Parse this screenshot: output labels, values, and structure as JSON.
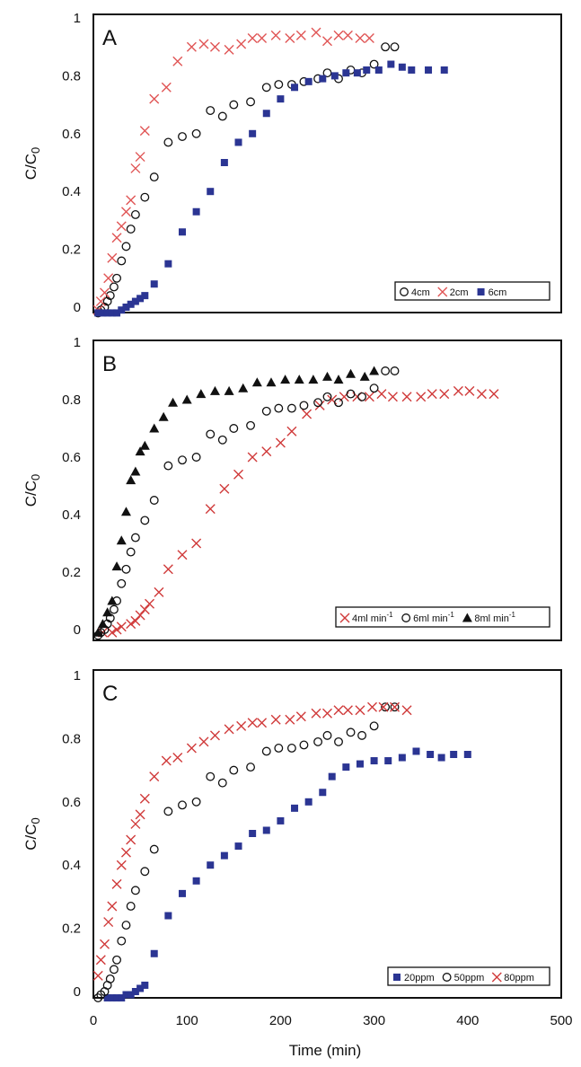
{
  "figure": {
    "xlabel": "Time (min)"
  },
  "chart_data": [
    {
      "type": "scatter",
      "panel_label": "A",
      "ylabel": "C/C0",
      "ylabel_main": "C/C",
      "ylabel_sub": "0",
      "xlim": [
        0,
        500
      ],
      "ylim": [
        0,
        1
      ],
      "xticks": [
        "0",
        "100",
        "200",
        "300",
        "400",
        "500"
      ],
      "yticks": [
        "0",
        "0.2",
        "0.4",
        "0.6",
        "0.8",
        "1"
      ],
      "show_xticks": false,
      "legend_position": "bottom-right",
      "series": [
        {
          "name": "4cm",
          "label": "4cm",
          "sup": "",
          "marker": "circle",
          "color": "#111111",
          "x": [
            5,
            8,
            12,
            15,
            18,
            22,
            25,
            30,
            35,
            40,
            45,
            55,
            65,
            80,
            95,
            110,
            125,
            138,
            150,
            168,
            185,
            198,
            212,
            225,
            240,
            250,
            262,
            275,
            287,
            300,
            312,
            322
          ],
          "y": [
            -0.02,
            -0.01,
            0.0,
            0.02,
            0.04,
            0.07,
            0.1,
            0.16,
            0.21,
            0.27,
            0.32,
            0.38,
            0.45,
            0.57,
            0.59,
            0.6,
            0.68,
            0.66,
            0.7,
            0.71,
            0.76,
            0.77,
            0.77,
            0.78,
            0.79,
            0.81,
            0.79,
            0.82,
            0.81,
            0.84,
            0.9,
            0.9
          ]
        },
        {
          "name": "2cm",
          "label": "2cm",
          "sup": "",
          "marker": "x",
          "color": "#e05555",
          "x": [
            5,
            8,
            12,
            16,
            20,
            25,
            30,
            35,
            40,
            45,
            50,
            55,
            65,
            78,
            90,
            105,
            118,
            130,
            145,
            158,
            170,
            180,
            195,
            210,
            222,
            238,
            250,
            262,
            272,
            285,
            295
          ],
          "y": [
            -0.01,
            0.02,
            0.05,
            0.1,
            0.17,
            0.24,
            0.28,
            0.33,
            0.37,
            0.48,
            0.52,
            0.61,
            0.72,
            0.76,
            0.85,
            0.9,
            0.91,
            0.9,
            0.89,
            0.91,
            0.93,
            0.93,
            0.94,
            0.93,
            0.94,
            0.95,
            0.92,
            0.94,
            0.94,
            0.93,
            0.93
          ]
        },
        {
          "name": "6cm",
          "label": "6cm",
          "sup": "",
          "marker": "square",
          "color": "#2b3593",
          "x": [
            5,
            10,
            15,
            20,
            25,
            30,
            35,
            40,
            45,
            50,
            55,
            65,
            80,
            95,
            110,
            125,
            140,
            155,
            170,
            185,
            200,
            215,
            230,
            245,
            258,
            270,
            282,
            292,
            305,
            318,
            330,
            340,
            358,
            375
          ],
          "y": [
            -0.02,
            -0.02,
            -0.02,
            -0.02,
            -0.02,
            -0.01,
            0.0,
            0.01,
            0.02,
            0.03,
            0.04,
            0.08,
            0.15,
            0.26,
            0.33,
            0.4,
            0.5,
            0.57,
            0.6,
            0.67,
            0.72,
            0.76,
            0.78,
            0.79,
            0.8,
            0.81,
            0.81,
            0.82,
            0.82,
            0.84,
            0.83,
            0.82,
            0.82,
            0.82
          ]
        }
      ]
    },
    {
      "type": "scatter",
      "panel_label": "B",
      "ylabel": "C/C0",
      "ylabel_main": "C/C",
      "ylabel_sub": "0",
      "xlim": [
        0,
        500
      ],
      "ylim": [
        0,
        1
      ],
      "xticks": [
        "0",
        "100",
        "200",
        "300",
        "400",
        "500"
      ],
      "yticks": [
        "0",
        "0.2",
        "0.4",
        "0.6",
        "0.8",
        "1"
      ],
      "show_xticks": false,
      "legend_position": "bottom-right",
      "series": [
        {
          "name": "4ml min-1",
          "label": "4ml min",
          "sup": "-1",
          "marker": "x",
          "color": "#d03a3a",
          "x": [
            10,
            20,
            25,
            30,
            40,
            45,
            50,
            55,
            60,
            70,
            80,
            95,
            110,
            125,
            140,
            155,
            170,
            185,
            200,
            212,
            228,
            242,
            255,
            268,
            282,
            295,
            308,
            320,
            335,
            350,
            362,
            375,
            390,
            402,
            415,
            428
          ],
          "y": [
            -0.01,
            -0.01,
            0.0,
            0.01,
            0.02,
            0.03,
            0.05,
            0.07,
            0.09,
            0.13,
            0.21,
            0.26,
            0.3,
            0.42,
            0.49,
            0.54,
            0.6,
            0.62,
            0.65,
            0.69,
            0.75,
            0.78,
            0.8,
            0.81,
            0.81,
            0.81,
            0.82,
            0.81,
            0.81,
            0.81,
            0.82,
            0.82,
            0.83,
            0.83,
            0.82,
            0.82
          ]
        },
        {
          "name": "6ml min-1",
          "label": "6ml min",
          "sup": "-1",
          "marker": "circle",
          "color": "#111111",
          "x": [
            5,
            8,
            12,
            15,
            18,
            22,
            25,
            30,
            35,
            40,
            45,
            55,
            65,
            80,
            95,
            110,
            125,
            138,
            150,
            168,
            185,
            198,
            212,
            225,
            240,
            250,
            262,
            275,
            287,
            300,
            312,
            322
          ],
          "y": [
            -0.02,
            -0.01,
            0.0,
            0.02,
            0.04,
            0.07,
            0.1,
            0.16,
            0.21,
            0.27,
            0.32,
            0.38,
            0.45,
            0.57,
            0.59,
            0.6,
            0.68,
            0.66,
            0.7,
            0.71,
            0.76,
            0.77,
            0.77,
            0.78,
            0.79,
            0.81,
            0.79,
            0.82,
            0.81,
            0.84,
            0.9,
            0.9
          ]
        },
        {
          "name": "8ml min-1",
          "label": "8ml min",
          "sup": "-1",
          "marker": "triangle",
          "color": "#111111",
          "x": [
            5,
            10,
            15,
            20,
            25,
            30,
            35,
            40,
            45,
            50,
            55,
            65,
            75,
            85,
            100,
            115,
            130,
            145,
            160,
            175,
            190,
            205,
            220,
            235,
            250,
            262,
            275,
            290,
            300
          ],
          "y": [
            -0.01,
            0.02,
            0.06,
            0.1,
            0.22,
            0.31,
            0.41,
            0.52,
            0.55,
            0.62,
            0.64,
            0.7,
            0.74,
            0.79,
            0.8,
            0.82,
            0.83,
            0.83,
            0.84,
            0.86,
            0.86,
            0.87,
            0.87,
            0.87,
            0.88,
            0.87,
            0.89,
            0.88,
            0.9
          ]
        }
      ]
    },
    {
      "type": "scatter",
      "panel_label": "C",
      "ylabel": "C/C0",
      "ylabel_main": "C/C",
      "ylabel_sub": "0",
      "xlim": [
        0,
        500
      ],
      "ylim": [
        0,
        1
      ],
      "xticks": [
        "0",
        "100",
        "200",
        "300",
        "400",
        "500"
      ],
      "yticks": [
        "0",
        "0.2",
        "0.4",
        "0.6",
        "0.8",
        "1"
      ],
      "show_xticks": true,
      "legend_position": "bottom-right",
      "series": [
        {
          "name": "20ppm",
          "label": "20ppm",
          "sup": "",
          "marker": "square",
          "color": "#2b3593",
          "x": [
            15,
            20,
            25,
            30,
            35,
            40,
            45,
            50,
            55,
            65,
            80,
            95,
            110,
            125,
            140,
            155,
            170,
            185,
            200,
            215,
            230,
            245,
            255,
            270,
            285,
            300,
            315,
            330,
            345,
            360,
            372,
            385,
            400
          ],
          "y": [
            -0.02,
            -0.02,
            -0.02,
            -0.02,
            -0.01,
            -0.01,
            0.0,
            0.01,
            0.02,
            0.12,
            0.24,
            0.31,
            0.35,
            0.4,
            0.43,
            0.46,
            0.5,
            0.51,
            0.54,
            0.58,
            0.6,
            0.63,
            0.68,
            0.71,
            0.72,
            0.73,
            0.73,
            0.74,
            0.76,
            0.75,
            0.74,
            0.75,
            0.75
          ]
        },
        {
          "name": "50ppm",
          "label": "50ppm",
          "sup": "",
          "marker": "circle",
          "color": "#111111",
          "x": [
            5,
            8,
            12,
            15,
            18,
            22,
            25,
            30,
            35,
            40,
            45,
            55,
            65,
            80,
            95,
            110,
            125,
            138,
            150,
            168,
            185,
            198,
            212,
            225,
            240,
            250,
            262,
            275,
            287,
            300,
            312,
            322
          ],
          "y": [
            -0.02,
            -0.01,
            0.0,
            0.02,
            0.04,
            0.07,
            0.1,
            0.16,
            0.21,
            0.27,
            0.32,
            0.38,
            0.45,
            0.57,
            0.59,
            0.6,
            0.68,
            0.66,
            0.7,
            0.71,
            0.76,
            0.77,
            0.77,
            0.78,
            0.79,
            0.81,
            0.79,
            0.82,
            0.81,
            0.84,
            0.9,
            0.9
          ]
        },
        {
          "name": "80ppm",
          "label": "80ppm",
          "sup": "",
          "marker": "x",
          "color": "#d03a3a",
          "x": [
            5,
            8,
            12,
            16,
            20,
            25,
            30,
            35,
            40,
            45,
            50,
            55,
            65,
            78,
            90,
            105,
            118,
            130,
            145,
            158,
            170,
            180,
            195,
            210,
            222,
            238,
            250,
            262,
            272,
            285,
            298,
            310,
            322,
            335
          ],
          "y": [
            0.05,
            0.1,
            0.15,
            0.22,
            0.27,
            0.34,
            0.4,
            0.44,
            0.48,
            0.53,
            0.56,
            0.61,
            0.68,
            0.73,
            0.74,
            0.77,
            0.79,
            0.81,
            0.83,
            0.84,
            0.85,
            0.85,
            0.86,
            0.86,
            0.87,
            0.88,
            0.88,
            0.89,
            0.89,
            0.89,
            0.9,
            0.9,
            0.9,
            0.89
          ]
        }
      ]
    }
  ]
}
